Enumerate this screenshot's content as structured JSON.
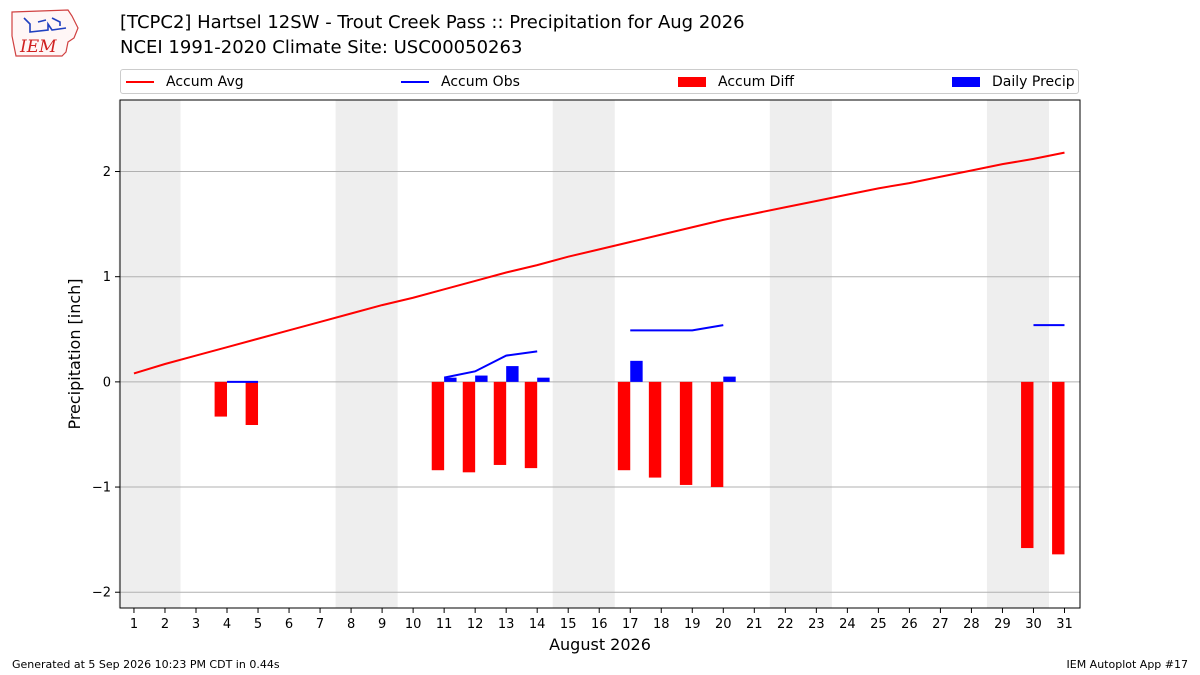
{
  "header": {
    "logo_text": "IEM",
    "title_line1": "[TCPC2] Hartsel 12SW - Trout Creek Pass :: Precipitation for Aug 2026",
    "title_line2": "NCEI 1991-2020 Climate Site: USC00050263"
  },
  "footer": {
    "generated": "Generated at 5 Sep 2026 10:23 PM CDT in 0.44s",
    "app": "IEM Autoplot App #17"
  },
  "colors": {
    "accum_avg": "#ff0000",
    "accum_obs": "#0000ff",
    "accum_diff": "#ff0000",
    "daily_precip": "#0000ff",
    "weekend_shade": "#eeeeee"
  },
  "chart_data": {
    "type": "bar",
    "title": "[TCPC2] Hartsel 12SW - Trout Creek Pass :: Precipitation for Aug 2026",
    "subtitle": "NCEI 1991-2020 Climate Site: USC00050263",
    "xlabel": "August 2026",
    "ylabel": "Precipitation [inch]",
    "x": [
      1,
      2,
      3,
      4,
      5,
      6,
      7,
      8,
      9,
      10,
      11,
      12,
      13,
      14,
      15,
      16,
      17,
      18,
      19,
      20,
      21,
      22,
      23,
      24,
      25,
      26,
      27,
      28,
      29,
      30,
      31
    ],
    "x_tick_labels": [
      "1",
      "2",
      "3",
      "4",
      "5",
      "6",
      "7",
      "8",
      "9",
      "10",
      "11",
      "12",
      "13",
      "14",
      "15",
      "16",
      "17",
      "18",
      "19",
      "20",
      "21",
      "22",
      "23",
      "24",
      "25",
      "26",
      "27",
      "28",
      "29",
      "30",
      "31"
    ],
    "y_ticks": [
      -2,
      -1,
      0,
      1,
      2
    ],
    "y_tick_labels": [
      "−2",
      "−1",
      "0",
      "1",
      "2"
    ],
    "xlim": [
      0.55,
      31.5
    ],
    "ylim": [
      -2.15,
      2.68
    ],
    "grid": "horizontal",
    "legend_position": "top",
    "legend": [
      "Accum Avg",
      "Accum Obs",
      "Accum Diff",
      "Daily Precip"
    ],
    "weekend_days": [
      1,
      2,
      8,
      9,
      15,
      16,
      22,
      23,
      29,
      30
    ],
    "series": [
      {
        "name": "Accum Avg",
        "kind": "line",
        "color": "#ff0000",
        "x": [
          1,
          2,
          3,
          4,
          5,
          6,
          7,
          8,
          9,
          10,
          11,
          12,
          13,
          14,
          15,
          16,
          17,
          18,
          19,
          20,
          21,
          22,
          23,
          24,
          25,
          26,
          27,
          28,
          29,
          30,
          31
        ],
        "values": [
          0.08,
          0.17,
          0.25,
          0.33,
          0.41,
          0.49,
          0.57,
          0.65,
          0.73,
          0.8,
          0.88,
          0.96,
          1.04,
          1.11,
          1.19,
          1.26,
          1.33,
          1.4,
          1.47,
          1.54,
          1.6,
          1.66,
          1.72,
          1.78,
          1.84,
          1.89,
          1.95,
          2.01,
          2.07,
          2.12,
          2.18
        ]
      },
      {
        "name": "Accum Obs",
        "kind": "line",
        "color": "#0000ff",
        "segments": [
          {
            "x": [
              4,
              5
            ],
            "values": [
              0.0,
              0.0
            ]
          },
          {
            "x": [
              11,
              12,
              13,
              14
            ],
            "values": [
              0.04,
              0.1,
              0.25,
              0.29
            ]
          },
          {
            "x": [
              17,
              18,
              19,
              20
            ],
            "values": [
              0.49,
              0.49,
              0.49,
              0.54
            ]
          },
          {
            "x": [
              30,
              31
            ],
            "values": [
              0.54,
              0.54
            ]
          }
        ]
      },
      {
        "name": "Accum Diff",
        "kind": "bar",
        "color": "#ff0000",
        "x": [
          4,
          5,
          11,
          12,
          13,
          14,
          17,
          18,
          19,
          20,
          30,
          31
        ],
        "values": [
          -0.33,
          -0.41,
          -0.84,
          -0.86,
          -0.79,
          -0.82,
          -0.84,
          -0.91,
          -0.98,
          -1.0,
          -1.58,
          -1.64
        ]
      },
      {
        "name": "Daily Precip",
        "kind": "bar",
        "color": "#0000ff",
        "x": [
          4,
          5,
          11,
          12,
          13,
          14,
          17,
          18,
          19,
          20,
          30,
          31
        ],
        "values": [
          0.0,
          0.0,
          0.04,
          0.06,
          0.15,
          0.04,
          0.2,
          0.0,
          0.0,
          0.05,
          0.0,
          0.0
        ]
      }
    ]
  }
}
